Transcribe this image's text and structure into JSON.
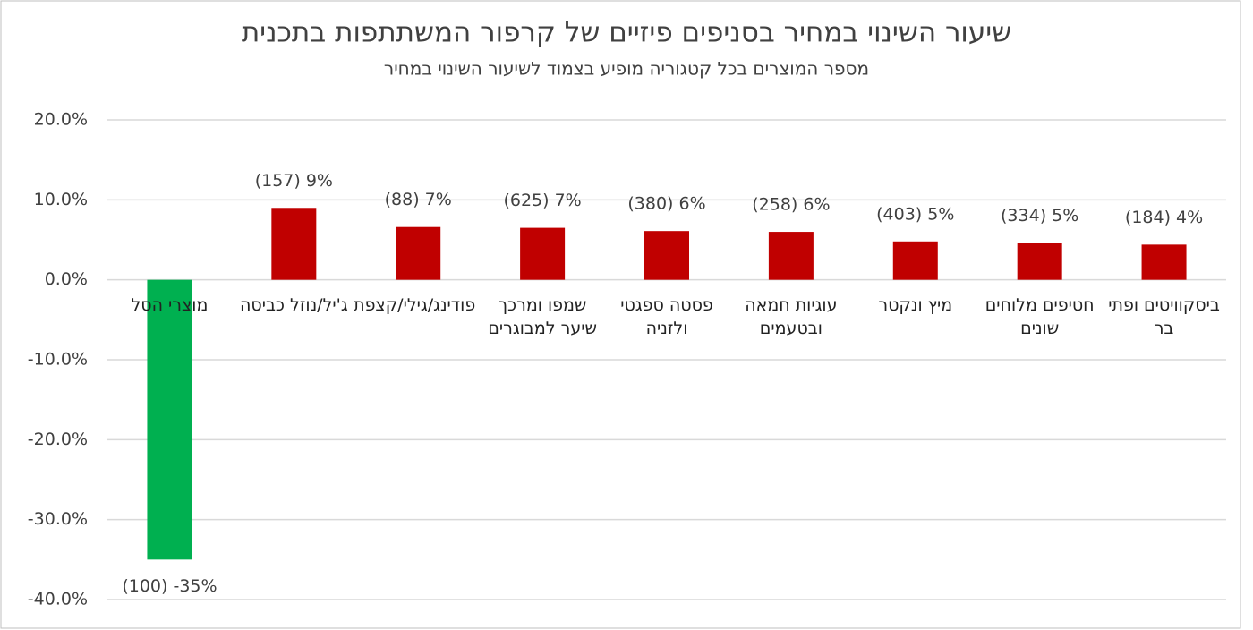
{
  "chart_data": {
    "type": "bar",
    "title": "שיעור השינוי במחיר בסניפים פיזיים של קרפור המשתתפות בתכנית",
    "subtitle": "מספר המוצרים בכל קטגוריה מופיע בצמוד לשיעור השינוי במחיר",
    "categories": [
      "מוצרי הסל",
      "ג'יל/נוזל כביסה",
      "פודינג/גילי/קצפת",
      "שמפו ומרכך שיער למבוגרים",
      "פסטה ספגטי ולזניה",
      "עוגיות חמאה ובטעמים",
      "מיץ ונקטר",
      "חטיפים מלוחים שונים",
      "ביסקוויטים ופתי בר"
    ],
    "values": [
      -35,
      9,
      6.6,
      6.5,
      6.1,
      6,
      4.8,
      4.6,
      4.4
    ],
    "value_labels": [
      "(100) -35%",
      "(157) 9%",
      "(88) 7%",
      "(625) 7%",
      "(380) 6%",
      "(258) 6%",
      "(403) 5%",
      "(334) 5%",
      "(184) 4%"
    ],
    "colors": [
      "#00b050",
      "#c00000",
      "#c00000",
      "#c00000",
      "#c00000",
      "#c00000",
      "#c00000",
      "#c00000",
      "#c00000"
    ],
    "ylim": [
      -40,
      20
    ],
    "yticks": [
      {
        "value": -40,
        "label": "-40.0%"
      },
      {
        "value": -30,
        "label": "-30.0%"
      },
      {
        "value": -20,
        "label": "-20.0%"
      },
      {
        "value": -10,
        "label": "-10.0%"
      },
      {
        "value": 0,
        "label": "0.0%"
      },
      {
        "value": 10,
        "label": "10.0%"
      },
      {
        "value": 20,
        "label": "20.0%"
      }
    ],
    "grid": true
  }
}
